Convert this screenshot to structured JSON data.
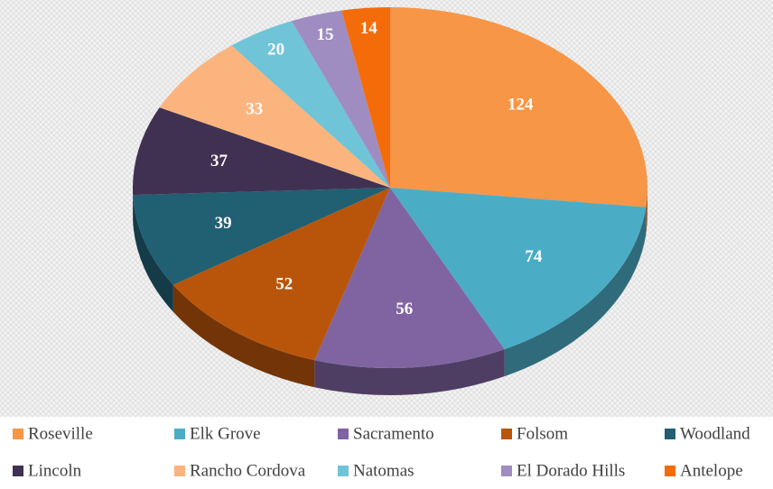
{
  "chart_data": {
    "type": "pie",
    "categories": [
      "Roseville",
      "Elk Grove",
      "Sacramento",
      "Folsom",
      "Woodland",
      "Lincoln",
      "Rancho Cordova",
      "Natomas",
      "El Dorado Hills",
      "Antelope"
    ],
    "values": [
      124,
      74,
      56,
      52,
      39,
      37,
      33,
      20,
      15,
      14
    ],
    "colors": [
      "#f79646",
      "#4bacc6",
      "#8064a2",
      "#b9550b",
      "#215f73",
      "#403152",
      "#fbb47e",
      "#6fc4d8",
      "#9f8cc0",
      "#f46c0a"
    ],
    "legend": "bottom"
  }
}
